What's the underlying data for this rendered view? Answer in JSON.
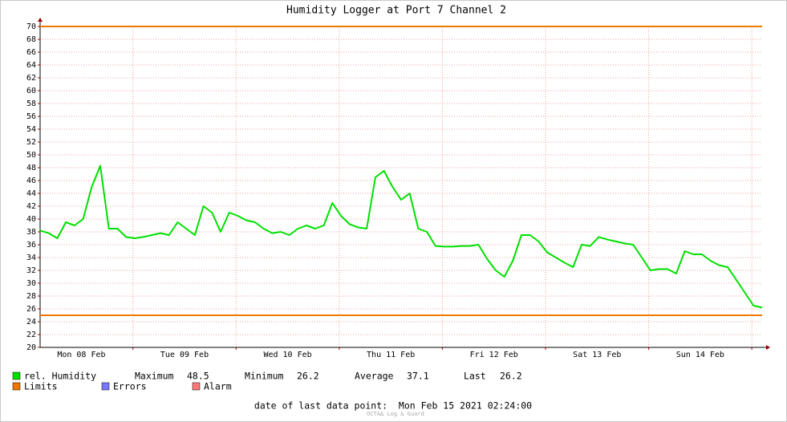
{
  "chart_data": {
    "type": "line",
    "title": "Humidity Logger at Port 7 Channel 2",
    "x": [
      0,
      2,
      4,
      6,
      8,
      10,
      12,
      14,
      16,
      18,
      20,
      22,
      24,
      26,
      28,
      30,
      32,
      34,
      36,
      38,
      40,
      42,
      44,
      46,
      48,
      50,
      52,
      54,
      56,
      58,
      60,
      62,
      64,
      66,
      68,
      70,
      72,
      74,
      76,
      78,
      80,
      82,
      84,
      86,
      88,
      90,
      92,
      94,
      96,
      98,
      100,
      102,
      104,
      106,
      108,
      110,
      112,
      114,
      116,
      118,
      120,
      122,
      124,
      126,
      128,
      130,
      132,
      134,
      136,
      138,
      140,
      142,
      144,
      146,
      148,
      150,
      152,
      154,
      156,
      158,
      160,
      162,
      164,
      166,
      168
    ],
    "series": [
      {
        "name": "rel. Humidity",
        "color": "#00e000",
        "values": [
          38.2,
          37.8,
          37,
          39.5,
          39,
          40,
          45,
          48.3,
          38.5,
          38.5,
          37.2,
          37,
          37.2,
          37.5,
          37.8,
          37.5,
          39.5,
          38.5,
          37.5,
          42,
          41,
          38,
          41,
          40.5,
          39.8,
          39.5,
          38.5,
          37.8,
          38,
          37.5,
          38.5,
          39,
          38.5,
          39,
          42.5,
          40.5,
          39.2,
          38.7,
          38.5,
          46.5,
          47.5,
          45,
          43,
          44,
          38.5,
          38,
          35.8,
          35.7,
          35.7,
          35.8,
          35.8,
          36,
          33.8,
          32,
          31,
          33.5,
          37.5,
          37.5,
          36.5,
          34.8,
          34,
          33.2,
          32.5,
          36,
          35.8,
          37.2,
          36.8,
          36.5,
          36.2,
          36,
          34,
          32,
          32.2,
          32.2,
          31.5,
          35,
          34.5,
          34.5,
          33.5,
          32.8,
          32.5,
          30.5,
          28.5,
          26.5,
          26.2
        ]
      }
    ],
    "limits": {
      "name": "Limits",
      "color": "#ee7700",
      "values": [
        70,
        25
      ]
    },
    "legend_extra": [
      {
        "name": "Errors",
        "color": "#7878ff"
      },
      {
        "name": "Alarm",
        "color": "#ff7878"
      }
    ],
    "stats": [
      {
        "label": "Maximum",
        "value": 48.5
      },
      {
        "label": "Minimum",
        "value": 26.2
      },
      {
        "label": "Average",
        "value": 37.1
      },
      {
        "label": "Last",
        "value": 26.2
      }
    ],
    "xlim": [
      0,
      168
    ],
    "xticks": [
      21.6,
      45.6,
      69.6,
      93.6,
      117.6,
      141.6,
      165.6
    ],
    "xlabels": [
      {
        "value": 9.6,
        "label": "Mon 08 Feb"
      },
      {
        "value": 33.6,
        "label": "Tue 09 Feb"
      },
      {
        "value": 57.6,
        "label": "Wed 10 Feb"
      },
      {
        "value": 81.6,
        "label": "Thu 11 Feb"
      },
      {
        "value": 105.6,
        "label": "Fri 12 Feb"
      },
      {
        "value": 129.6,
        "label": "Sat 13 Feb"
      },
      {
        "value": 153.6,
        "label": "Sun 14 Feb"
      }
    ],
    "ylim": [
      20,
      70
    ],
    "yticks": [
      20,
      22,
      24,
      26,
      28,
      30,
      32,
      34,
      36,
      38,
      40,
      42,
      44,
      46,
      48,
      50,
      52,
      54,
      56,
      58,
      60,
      62,
      64,
      66,
      68,
      70
    ],
    "grid": true,
    "footer": "date of last data point:  Mon Feb 15 2021 02:24:00",
    "watermark": "OCTA∆ Log & Guard"
  }
}
